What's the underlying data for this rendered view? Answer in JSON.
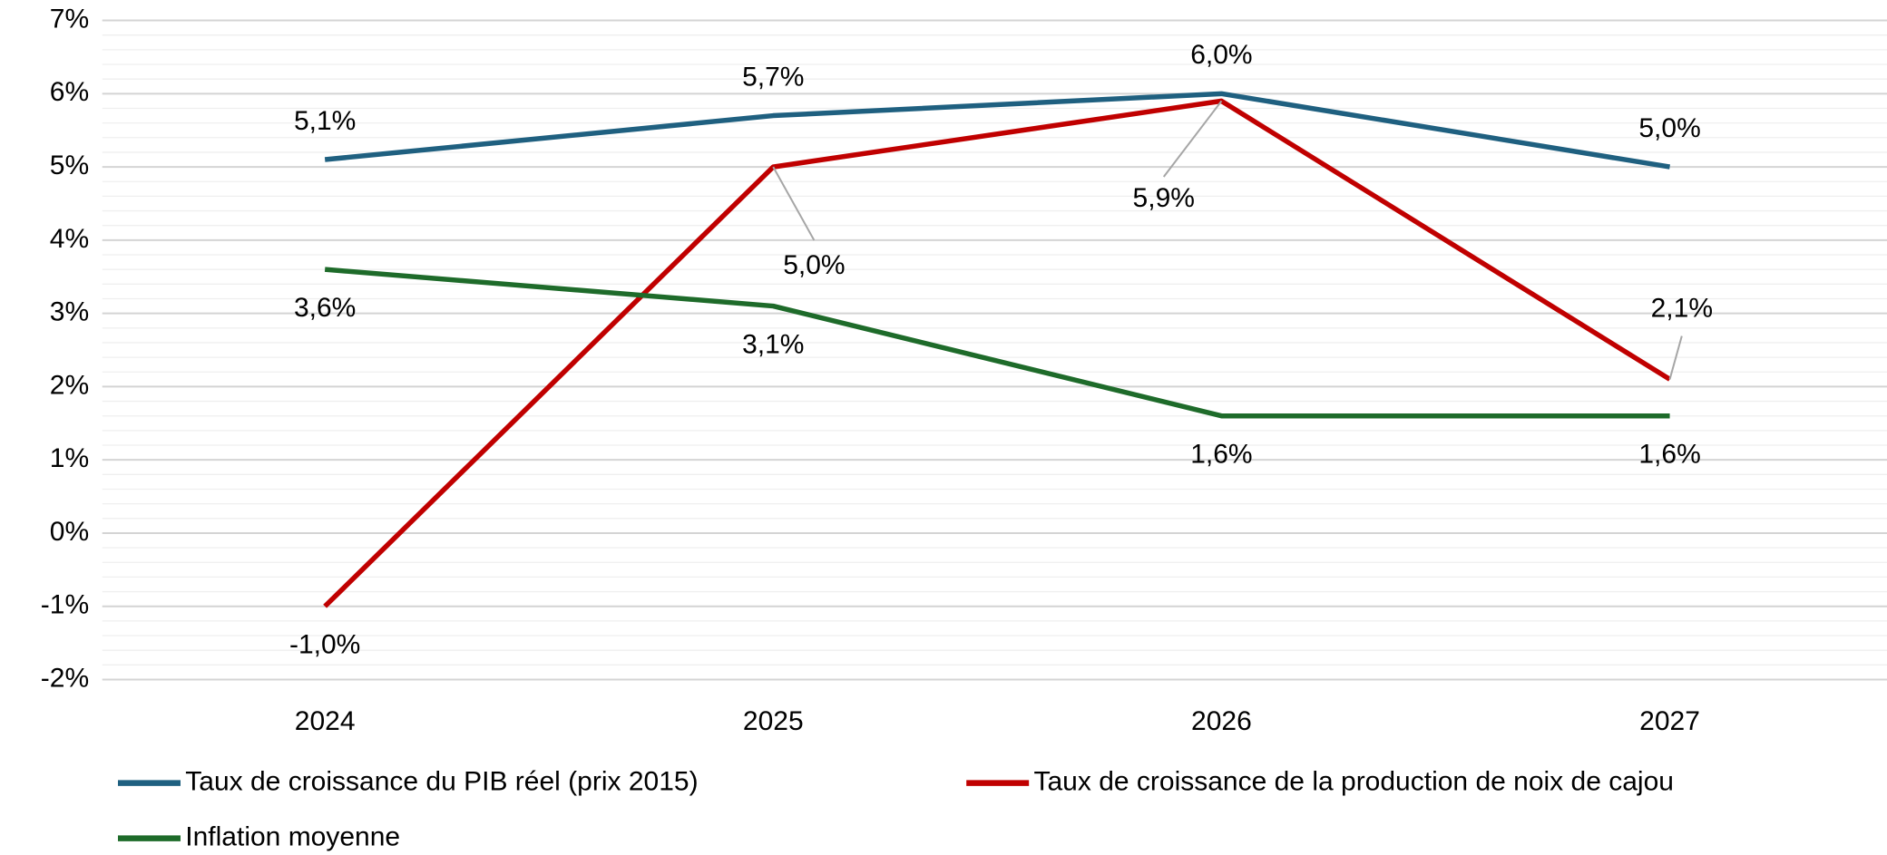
{
  "chart_data": {
    "type": "line",
    "categories": [
      "2024",
      "2025",
      "2026",
      "2027"
    ],
    "series": [
      {
        "name": "Taux de croissance du PIB réel (prix 2015)",
        "color": "#1f6080",
        "values": [
          5.1,
          5.7,
          6.0,
          5.0
        ],
        "value_labels": [
          "5,1%",
          "5,7%",
          "6,0%",
          "5,0%"
        ]
      },
      {
        "name": "Taux de croissance de la production de noix de cajou",
        "color": "#c00000",
        "values": [
          -1.0,
          5.0,
          5.9,
          2.1
        ],
        "value_labels": [
          "-1,0%",
          "5,0%",
          "5,9%",
          "2,1%"
        ]
      },
      {
        "name": "Inflation moyenne",
        "color": "#1e6b2a",
        "values": [
          3.6,
          3.1,
          1.6,
          1.6
        ],
        "value_labels": [
          "3,6%",
          "3,1%",
          "1,6%",
          "1,6%"
        ]
      }
    ],
    "ylim": [
      -2,
      7
    ],
    "yticks": [
      {
        "value": -2,
        "label": "-2%"
      },
      {
        "value": -1,
        "label": "-1%"
      },
      {
        "value": 0,
        "label": "0%"
      },
      {
        "value": 1,
        "label": "1%"
      },
      {
        "value": 2,
        "label": "2%"
      },
      {
        "value": 3,
        "label": "3%"
      },
      {
        "value": 4,
        "label": "4%"
      },
      {
        "value": 5,
        "label": "5%"
      },
      {
        "value": 6,
        "label": "6%"
      },
      {
        "value": 7,
        "label": "7%"
      }
    ],
    "grid": true,
    "legend": "bottom"
  }
}
